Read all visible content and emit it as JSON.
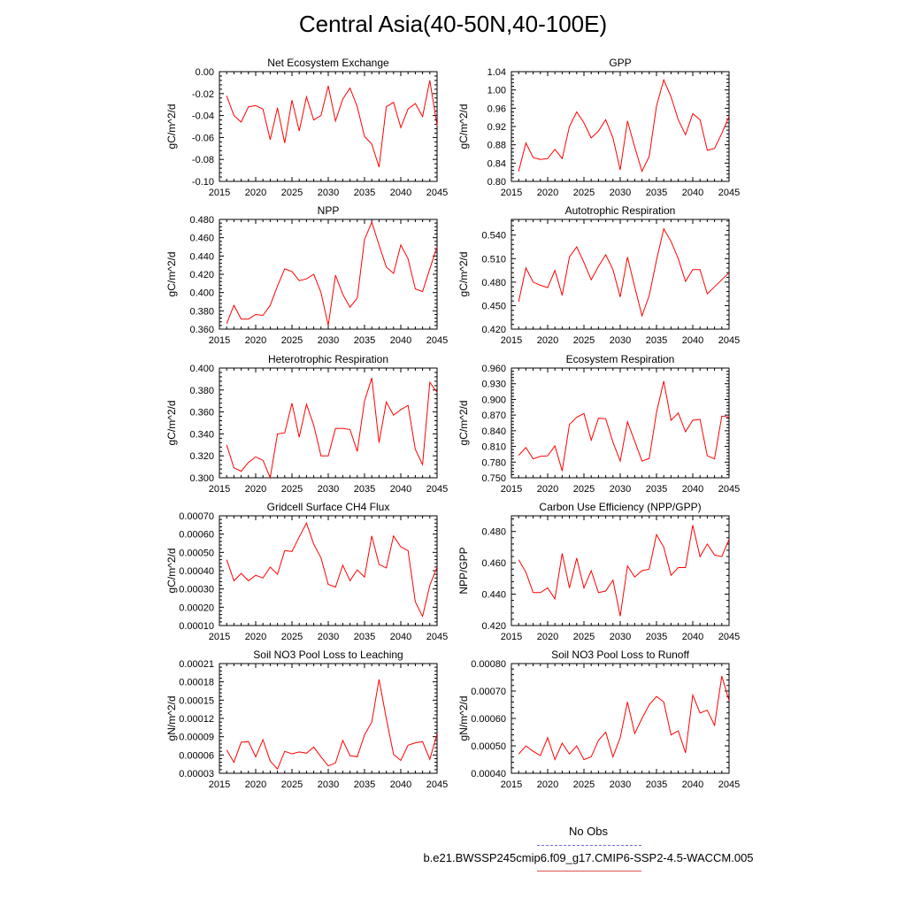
{
  "title": "Central Asia(40-50N,40-100E)",
  "legend": {
    "obs_label": "No Obs",
    "sim_label": "b.e21.BWSSP245cmip6.f09_g17.CMIP6-SSP2-4.5-WACCM.005",
    "obs_color": "#6a6ad8",
    "sim_color": "#e05050"
  },
  "line_color": "#ff0000",
  "x_years": [
    2016,
    2017,
    2018,
    2019,
    2020,
    2021,
    2022,
    2023,
    2024,
    2025,
    2026,
    2027,
    2028,
    2029,
    2030,
    2031,
    2032,
    2033,
    2034,
    2035,
    2036,
    2037,
    2038,
    2039,
    2040,
    2041,
    2042,
    2043,
    2044,
    2045
  ],
  "chart_data": [
    {
      "type": "line",
      "title": "Net Ecosystem Exchange",
      "ylabel": "gC/m^2/d",
      "xlim": [
        2015,
        2045
      ],
      "xticks": [
        "2015",
        "2020",
        "2025",
        "2030",
        "2035",
        "2040",
        "2045"
      ],
      "ylim": [
        -0.1,
        0.0
      ],
      "yticks": [
        "-0.10",
        "-0.08",
        "-0.06",
        "-0.04",
        "-0.02",
        "0.00"
      ],
      "values": [
        -0.022,
        -0.04,
        -0.046,
        -0.032,
        -0.031,
        -0.034,
        -0.062,
        -0.033,
        -0.065,
        -0.026,
        -0.054,
        -0.023,
        -0.044,
        -0.04,
        -0.013,
        -0.045,
        -0.025,
        -0.015,
        -0.032,
        -0.059,
        -0.066,
        -0.087,
        -0.032,
        -0.028,
        -0.051,
        -0.034,
        -0.029,
        -0.041,
        -0.008,
        -0.049
      ]
    },
    {
      "type": "line",
      "title": "GPP",
      "ylabel": "gC/m^2/d",
      "xlim": [
        2015,
        2045
      ],
      "xticks": [
        "2015",
        "2020",
        "2025",
        "2030",
        "2035",
        "2040",
        "2045"
      ],
      "ylim": [
        0.8,
        1.04
      ],
      "yticks": [
        "0.80",
        "0.84",
        "0.88",
        "0.92",
        "0.96",
        "1.00",
        "1.04"
      ],
      "values": [
        0.822,
        0.884,
        0.852,
        0.848,
        0.85,
        0.87,
        0.85,
        0.92,
        0.952,
        0.928,
        0.895,
        0.91,
        0.935,
        0.895,
        0.825,
        0.932,
        0.875,
        0.822,
        0.855,
        0.965,
        1.022,
        0.985,
        0.935,
        0.902,
        0.948,
        0.935,
        0.868,
        0.872,
        0.905,
        0.942
      ]
    },
    {
      "type": "line",
      "title": "NPP",
      "ylabel": "gC/m^2/d",
      "xlim": [
        2015,
        2045
      ],
      "xticks": [
        "2015",
        "2020",
        "2025",
        "2030",
        "2035",
        "2040",
        "2045"
      ],
      "ylim": [
        0.36,
        0.48
      ],
      "yticks": [
        "0.360",
        "0.380",
        "0.400",
        "0.420",
        "0.440",
        "0.460",
        "0.480"
      ],
      "values": [
        0.366,
        0.386,
        0.371,
        0.371,
        0.376,
        0.375,
        0.386,
        0.407,
        0.426,
        0.423,
        0.413,
        0.415,
        0.42,
        0.4,
        0.364,
        0.419,
        0.398,
        0.384,
        0.394,
        0.458,
        0.477,
        0.452,
        0.428,
        0.421,
        0.452,
        0.437,
        0.404,
        0.401,
        0.426,
        0.45
      ]
    },
    {
      "type": "line",
      "title": "Autotrophic Respiration",
      "ylabel": "gC/m^2/d",
      "xlim": [
        2015,
        2045
      ],
      "xticks": [
        "2015",
        "2020",
        "2025",
        "2030",
        "2035",
        "2040",
        "2045"
      ],
      "ylim": [
        0.42,
        0.56
      ],
      "yticks": [
        "0.420",
        "0.450",
        "0.480",
        "0.510",
        "0.540"
      ],
      "values": [
        0.455,
        0.498,
        0.48,
        0.476,
        0.473,
        0.495,
        0.463,
        0.512,
        0.525,
        0.505,
        0.483,
        0.5,
        0.515,
        0.496,
        0.461,
        0.512,
        0.474,
        0.437,
        0.463,
        0.508,
        0.548,
        0.532,
        0.51,
        0.481,
        0.496,
        0.496,
        0.465,
        0.474,
        0.483,
        0.492
      ]
    },
    {
      "type": "line",
      "title": "Heterotrophic Respiration",
      "ylabel": "gC/m^2/d",
      "xlim": [
        2015,
        2045
      ],
      "xticks": [
        "2015",
        "2020",
        "2025",
        "2030",
        "2035",
        "2040",
        "2045"
      ],
      "ylim": [
        0.3,
        0.4
      ],
      "yticks": [
        "0.300",
        "0.320",
        "0.340",
        "0.360",
        "0.380",
        "0.400"
      ],
      "values": [
        0.33,
        0.309,
        0.306,
        0.314,
        0.319,
        0.316,
        0.3,
        0.34,
        0.341,
        0.368,
        0.337,
        0.367,
        0.348,
        0.32,
        0.32,
        0.345,
        0.345,
        0.344,
        0.324,
        0.37,
        0.391,
        0.332,
        0.369,
        0.357,
        0.362,
        0.366,
        0.326,
        0.312,
        0.387,
        0.378
      ]
    },
    {
      "type": "line",
      "title": "Ecosystem Respiration",
      "ylabel": "gC/m^2/d",
      "xlim": [
        2015,
        2045
      ],
      "xticks": [
        "2015",
        "2020",
        "2025",
        "2030",
        "2035",
        "2040",
        "2045"
      ],
      "ylim": [
        0.75,
        0.96
      ],
      "yticks": [
        "0.750",
        "0.780",
        "0.810",
        "0.840",
        "0.870",
        "0.900",
        "0.930",
        "0.960"
      ],
      "values": [
        0.793,
        0.808,
        0.786,
        0.791,
        0.792,
        0.811,
        0.763,
        0.852,
        0.866,
        0.873,
        0.822,
        0.864,
        0.863,
        0.818,
        0.782,
        0.857,
        0.82,
        0.782,
        0.787,
        0.875,
        0.935,
        0.86,
        0.874,
        0.838,
        0.86,
        0.862,
        0.792,
        0.786,
        0.868,
        0.866
      ]
    },
    {
      "type": "line",
      "title": "Gridcell Surface CH4 Flux",
      "ylabel": "gC/m^2/d",
      "xlim": [
        2015,
        2045
      ],
      "xticks": [
        "2015",
        "2020",
        "2025",
        "2030",
        "2035",
        "2040",
        "2045"
      ],
      "ylim": [
        0.0001,
        0.0007
      ],
      "yticks": [
        "0.00010",
        "0.00020",
        "0.00030",
        "0.00040",
        "0.00050",
        "0.00060",
        "0.00070"
      ],
      "values": [
        0.00046,
        0.000345,
        0.000385,
        0.000345,
        0.000375,
        0.00036,
        0.00042,
        0.00038,
        0.00051,
        0.000505,
        0.000585,
        0.00066,
        0.000545,
        0.00047,
        0.000325,
        0.00031,
        0.00043,
        0.000345,
        0.000405,
        0.000365,
        0.00059,
        0.000435,
        0.000415,
        0.00059,
        0.00053,
        0.00051,
        0.00023,
        0.00015,
        0.00032,
        0.00042
      ]
    },
    {
      "type": "line",
      "title": "Carbon Use Efficiency (NPP/GPP)",
      "ylabel": "NPP/GPP",
      "xlim": [
        2015,
        2045
      ],
      "xticks": [
        "2015",
        "2020",
        "2025",
        "2030",
        "2035",
        "2040",
        "2045"
      ],
      "ylim": [
        0.42,
        0.49
      ],
      "yticks": [
        "0.420",
        "0.440",
        "0.460",
        "0.480"
      ],
      "values": [
        0.462,
        0.454,
        0.441,
        0.441,
        0.444,
        0.437,
        0.466,
        0.444,
        0.463,
        0.444,
        0.455,
        0.441,
        0.442,
        0.449,
        0.426,
        0.458,
        0.451,
        0.455,
        0.456,
        0.478,
        0.47,
        0.452,
        0.457,
        0.457,
        0.484,
        0.464,
        0.472,
        0.465,
        0.464,
        0.475
      ]
    },
    {
      "type": "line",
      "title": "Soil NO3 Pool Loss to Leaching",
      "ylabel": "gN/m^2/d",
      "xlim": [
        2015,
        2045
      ],
      "xticks": [
        "2015",
        "2020",
        "2025",
        "2030",
        "2035",
        "2040",
        "2045"
      ],
      "ylim": [
        3e-05,
        0.00021
      ],
      "yticks": [
        "0.00003",
        "0.00006",
        "0.00009",
        "0.00012",
        "0.00015",
        "0.00018",
        "0.00021"
      ],
      "values": [
        6.8e-05,
        4.8e-05,
        8.1e-05,
        8.2e-05,
        5.7e-05,
        8.5e-05,
        5e-05,
        3.7e-05,
        6.6e-05,
        6.2e-05,
        6.5e-05,
        6.3e-05,
        7.3e-05,
        5.7e-05,
        4.2e-05,
        4.7e-05,
        8.4e-05,
        5.9e-05,
        5.7e-05,
        9.3e-05,
        0.000114,
        0.000184,
        0.00012,
        6.1e-05,
        5.1e-05,
        7.6e-05,
        8e-05,
        8.2e-05,
        5.3e-05,
        9.5e-05
      ]
    },
    {
      "type": "line",
      "title": "Soil NO3 Pool Loss to Runoff",
      "ylabel": "gN/m^2/d",
      "xlim": [
        2015,
        2045
      ],
      "xticks": [
        "2015",
        "2020",
        "2025",
        "2030",
        "2035",
        "2040",
        "2045"
      ],
      "ylim": [
        0.0004,
        0.0008
      ],
      "yticks": [
        "0.00040",
        "0.00050",
        "0.00060",
        "0.00070",
        "0.00080"
      ],
      "values": [
        0.00047,
        0.0005,
        0.00048,
        0.000465,
        0.00053,
        0.00045,
        0.00051,
        0.00047,
        0.0005,
        0.00045,
        0.00046,
        0.00052,
        0.00055,
        0.00046,
        0.00053,
        0.00066,
        0.000545,
        0.0006,
        0.00065,
        0.00068,
        0.00066,
        0.00054,
        0.000555,
        0.000475,
        0.000685,
        0.00062,
        0.00063,
        0.000575,
        0.000755,
        0.000665
      ]
    }
  ]
}
